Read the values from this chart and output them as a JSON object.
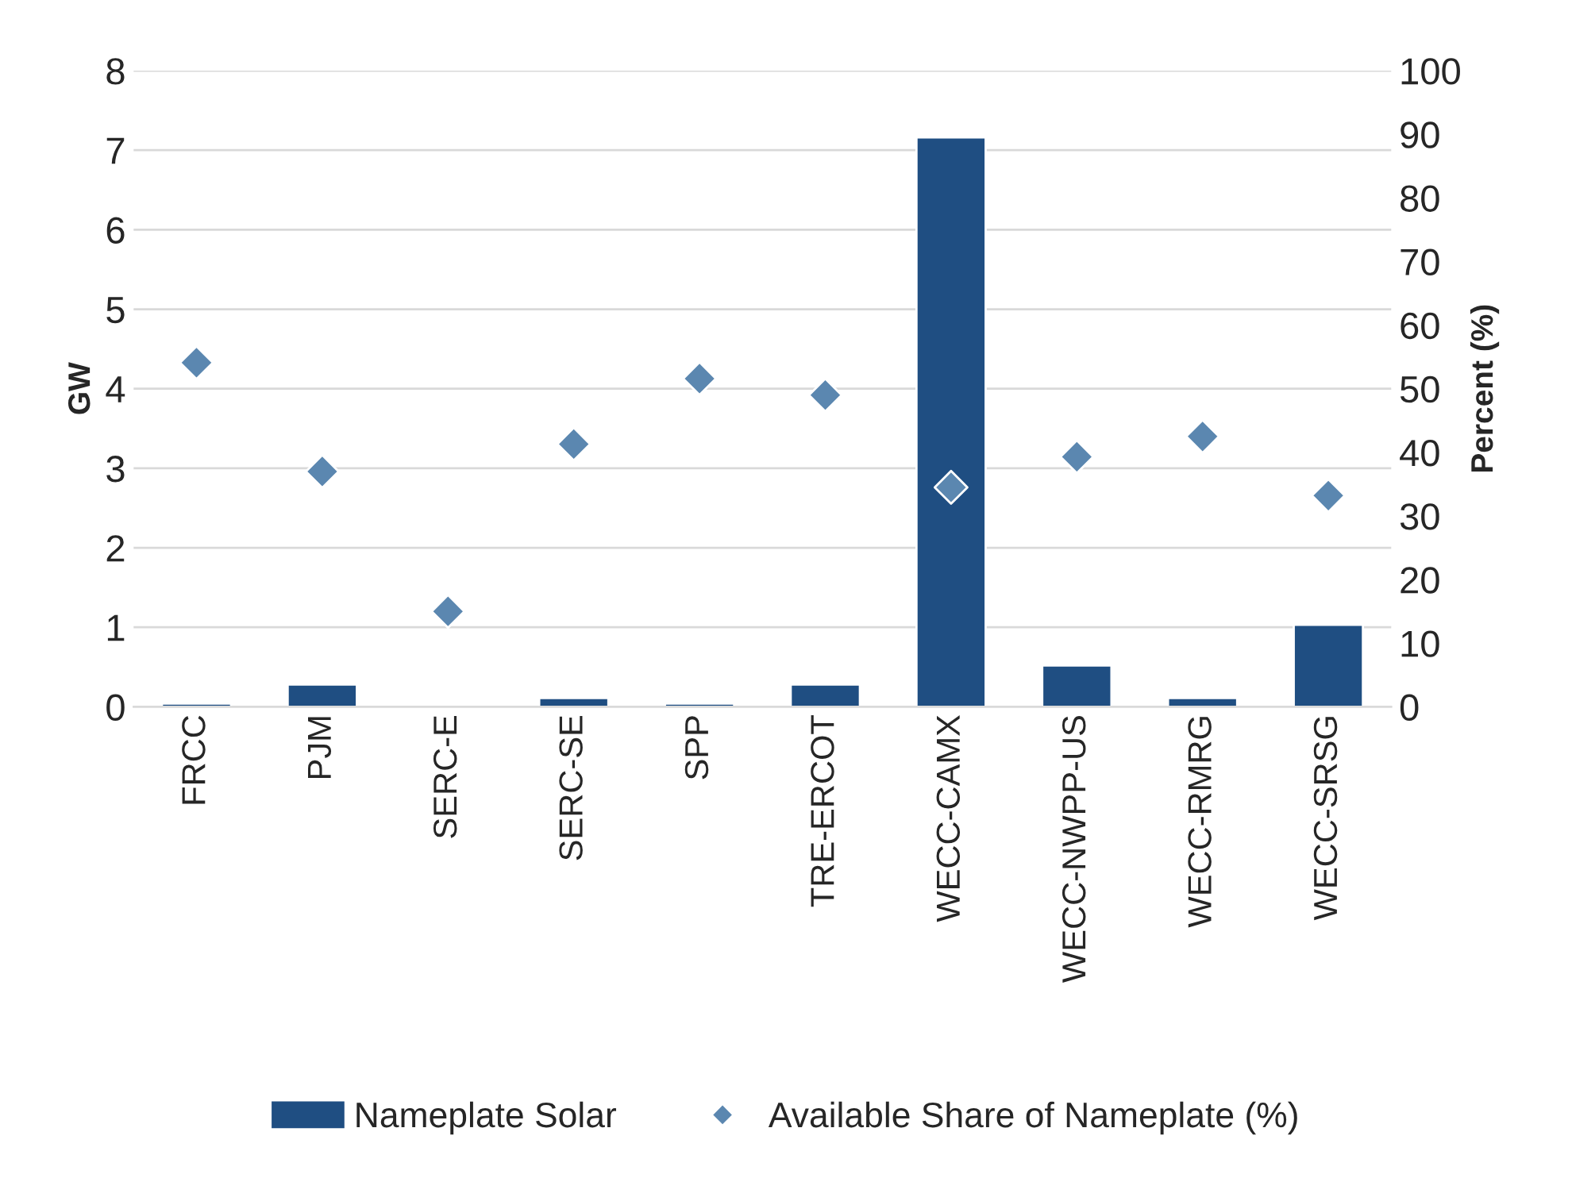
{
  "chart_data": {
    "type": "bar",
    "ylabel": "GW",
    "y2label": "Percent (%)",
    "categories": [
      "FRCC",
      "PJM",
      "SERC-E",
      "SERC-SE",
      "SPP",
      "TRE-ERCOT",
      "WECC-CAMX",
      "WECC-NWPP-US",
      "WECC-RMRG",
      "WECC-SRSG"
    ],
    "series": [
      {
        "name": "Nameplate Solar",
        "color": "#1f4e82",
        "values": [
          0.04,
          0.28,
          null,
          0.11,
          0.04,
          0.28,
          7.16,
          0.52,
          0.11,
          1.03
        ]
      },
      {
        "name": "Available Share of Nameplate (%)",
        "type": "scatter",
        "axis": "y2",
        "color": "#5b87b0",
        "values": [
          54.1,
          37.0,
          15.0,
          41.3,
          51.6,
          49.0,
          34.5,
          39.3,
          42.5,
          33.2
        ]
      }
    ],
    "ylim": [
      0,
      8
    ],
    "yticks": [
      0,
      1,
      2,
      3,
      4,
      5,
      6,
      7,
      8
    ],
    "y2lim": [
      0,
      100
    ],
    "y2ticks": [
      0,
      10,
      20,
      30,
      40,
      50,
      60,
      70,
      80,
      90,
      100
    ],
    "grid": "y",
    "legend": "bottom",
    "marker": "diamond"
  }
}
